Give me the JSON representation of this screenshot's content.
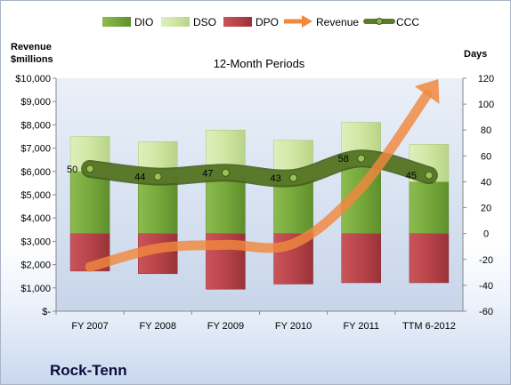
{
  "chart_data": {
    "type": "bar",
    "title": "12-Month Periods",
    "ylabel_left": [
      "Revenue",
      "$millions"
    ],
    "ylabel_right": "Days",
    "categories": [
      "FY 2007",
      "FY 2008",
      "FY 2009",
      "FY 2010",
      "FY 2011",
      "TTM 6-2012"
    ],
    "left_axis": {
      "min": 0,
      "max": 10000,
      "step": 1000,
      "tick_labels": [
        "$-",
        "$1,000",
        "$2,000",
        "$3,000",
        "$4,000",
        "$5,000",
        "$6,000",
        "$7,000",
        "$8,000",
        "$9,000",
        "$10,000"
      ]
    },
    "right_axis": {
      "min": -60,
      "max": 120,
      "step": 20,
      "tick_labels": [
        "-60",
        "-40",
        "-20",
        "0",
        "20",
        "40",
        "60",
        "80",
        "100",
        "120"
      ]
    },
    "legend_position": "top",
    "legend": [
      "DIO",
      "DSO",
      "DPO",
      "Revenue",
      "CCC"
    ],
    "series": [
      {
        "name": "DIO",
        "axis": "right",
        "kind": "stacked-bar-positive",
        "color": "#77a83c",
        "values": [
          48,
          44,
          48,
          43,
          52,
          40
        ]
      },
      {
        "name": "DSO",
        "axis": "right",
        "kind": "stacked-bar-positive",
        "color": "#cfe6a2",
        "values": [
          27,
          27,
          32,
          29,
          34,
          29
        ]
      },
      {
        "name": "DPO",
        "axis": "right",
        "kind": "bar-negative",
        "color": "#b8444a",
        "values": [
          -29,
          -31,
          -43,
          -39,
          -38,
          -38
        ]
      },
      {
        "name": "Revenue",
        "axis": "left",
        "kind": "arrow-line",
        "color": "#f0883e",
        "values": [
          1900,
          2700,
          2850,
          2900,
          5300,
          9400
        ]
      },
      {
        "name": "CCC",
        "axis": "right",
        "kind": "line",
        "color": "#5b7a2a",
        "values": [
          50,
          44,
          47,
          43,
          58,
          45
        ],
        "labels": [
          "50",
          "44",
          "47",
          "43",
          "58",
          "45"
        ]
      }
    ],
    "grid": false
  },
  "company": "Rock-Tenn"
}
